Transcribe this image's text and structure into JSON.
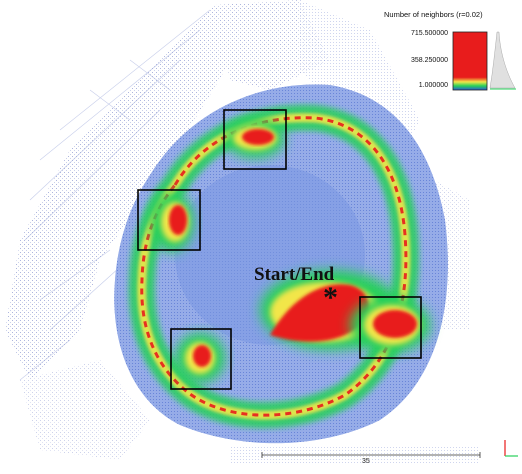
{
  "legend": {
    "title": "Number of neighbors (r=0.02)",
    "max": "715.500000",
    "mid": "358.250000",
    "min": "1.000000"
  },
  "annotation": {
    "label": "Start/End",
    "marker": "*"
  },
  "scale_bar": {
    "label": "35"
  },
  "colors": {
    "background": "#ffffff",
    "sparse_points": "#2b3fa0",
    "dense_blue": "#4a6fd0",
    "green": "#27d05a",
    "yellow": "#f2e64a",
    "red": "#e81c1c",
    "box_stroke": "#000000"
  },
  "highlight_boxes": [
    {
      "name": "top"
    },
    {
      "name": "left"
    },
    {
      "name": "bottom-left"
    },
    {
      "name": "right"
    }
  ]
}
